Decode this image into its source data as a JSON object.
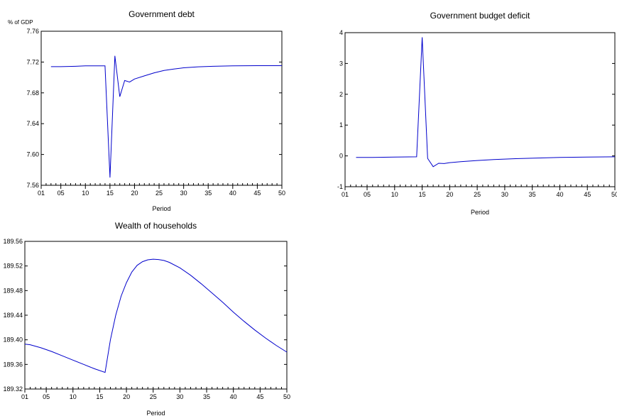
{
  "chart_data": [
    {
      "type": "line",
      "title": "Government debt",
      "ylabel": "% of GDP",
      "xlabel": "Period",
      "xlim": [
        1,
        50
      ],
      "ylim": [
        7.56,
        7.76
      ],
      "yticks": [
        7.56,
        7.6,
        7.64,
        7.68,
        7.72,
        7.76
      ],
      "ytick_labels": [
        "7.56",
        "7.60",
        "7.64",
        "7.68",
        "7.72",
        "7.76"
      ],
      "xticks": [
        1,
        5,
        10,
        15,
        20,
        25,
        30,
        35,
        40,
        45,
        50
      ],
      "xtick_labels": [
        "01",
        "05",
        "10",
        "15",
        "20",
        "25",
        "30",
        "35",
        "40",
        "45",
        "50"
      ],
      "grid": false,
      "series": [
        {
          "x": [
            3,
            5,
            8,
            10,
            12,
            14,
            15,
            16,
            17,
            18,
            19,
            20,
            22,
            24,
            26,
            28,
            30,
            33,
            36,
            40,
            45,
            50
          ],
          "y": [
            7.714,
            7.714,
            7.7145,
            7.715,
            7.715,
            7.715,
            7.57,
            7.728,
            7.675,
            7.696,
            7.694,
            7.698,
            7.702,
            7.706,
            7.709,
            7.711,
            7.7125,
            7.7138,
            7.7145,
            7.715,
            7.7153,
            7.7153
          ]
        }
      ]
    },
    {
      "type": "line",
      "title": "Government budget deficit",
      "ylabel": "",
      "xlabel": "Period",
      "xlim": [
        1,
        50
      ],
      "ylim": [
        -1,
        4
      ],
      "yticks": [
        -1,
        0,
        1,
        2,
        3,
        4
      ],
      "ytick_labels": [
        "-1",
        "0",
        "1",
        "2",
        "3",
        "4"
      ],
      "xticks": [
        1,
        5,
        10,
        15,
        20,
        25,
        30,
        35,
        40,
        45,
        50
      ],
      "xtick_labels": [
        "01",
        "05",
        "10",
        "15",
        "20",
        "25",
        "30",
        "35",
        "40",
        "45",
        "50"
      ],
      "grid": false,
      "series": [
        {
          "x": [
            3,
            6,
            10,
            14,
            15,
            16,
            17,
            18,
            19,
            20,
            22,
            25,
            28,
            32,
            36,
            40,
            45,
            50
          ],
          "y": [
            -0.05,
            -0.05,
            -0.04,
            -0.03,
            3.85,
            -0.08,
            -0.35,
            -0.24,
            -0.25,
            -0.22,
            -0.19,
            -0.15,
            -0.12,
            -0.09,
            -0.07,
            -0.05,
            -0.04,
            -0.03
          ]
        }
      ]
    },
    {
      "type": "line",
      "title": "Wealth of households",
      "ylabel": "",
      "xlabel": "Period",
      "xlim": [
        1,
        50
      ],
      "ylim": [
        189.32,
        189.56
      ],
      "yticks": [
        189.32,
        189.36,
        189.4,
        189.44,
        189.48,
        189.52,
        189.56
      ],
      "ytick_labels": [
        "189.32",
        "189.36",
        "189.40",
        "189.44",
        "189.48",
        "189.52",
        "189.56"
      ],
      "xticks": [
        1,
        5,
        10,
        15,
        20,
        25,
        30,
        35,
        40,
        45,
        50
      ],
      "xtick_labels": [
        "01",
        "05",
        "10",
        "15",
        "20",
        "25",
        "30",
        "35",
        "40",
        "45",
        "50"
      ],
      "grid": false,
      "series": [
        {
          "x": [
            1,
            2,
            4,
            6,
            8,
            10,
            12,
            14,
            16,
            17,
            18,
            19,
            20,
            21,
            22,
            23,
            24,
            25,
            26,
            27,
            28,
            30,
            32,
            34,
            36,
            38,
            40,
            42,
            44,
            46,
            48,
            50
          ],
          "y": [
            189.393,
            189.392,
            189.387,
            189.381,
            189.374,
            189.367,
            189.36,
            189.353,
            189.347,
            189.4,
            189.44,
            189.471,
            189.493,
            189.51,
            189.521,
            189.527,
            189.53,
            189.531,
            189.5305,
            189.529,
            189.526,
            189.517,
            189.505,
            189.491,
            189.476,
            189.461,
            189.445,
            189.43,
            189.416,
            189.403,
            189.391,
            189.38
          ]
        }
      ]
    }
  ]
}
